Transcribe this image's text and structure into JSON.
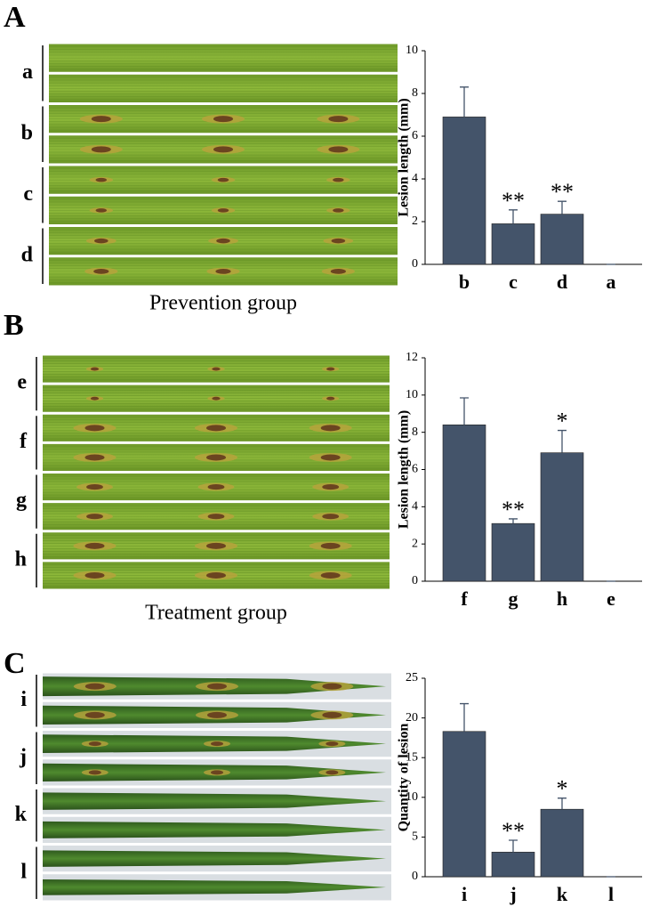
{
  "chart_data": [
    {
      "type": "bar",
      "panel": "A",
      "caption": "Prevention group",
      "photo_labels": [
        "a",
        "b",
        "c",
        "d"
      ],
      "y_label": "Lesion length (mm)",
      "categories": [
        "b",
        "c",
        "d",
        "a"
      ],
      "values": [
        6.9,
        1.9,
        2.35,
        0
      ],
      "errors": [
        1.4,
        0.65,
        0.6,
        0
      ],
      "annotations": [
        null,
        "**",
        "**",
        null
      ],
      "color": "#44546a",
      "ylim": [
        0,
        10
      ],
      "yticks": [
        0,
        2,
        4,
        6,
        8,
        10
      ]
    },
    {
      "type": "bar",
      "panel": "B",
      "caption": "Treatment group",
      "photo_labels": [
        "e",
        "f",
        "g",
        "h"
      ],
      "y_label": "Lesion length (mm)",
      "categories": [
        "f",
        "g",
        "h",
        "e"
      ],
      "values": [
        8.4,
        3.1,
        6.9,
        0
      ],
      "errors": [
        1.45,
        0.25,
        1.2,
        0
      ],
      "annotations": [
        null,
        "**",
        "*",
        null
      ],
      "color": "#44546a",
      "ylim": [
        0,
        12
      ],
      "yticks": [
        0,
        2,
        4,
        6,
        8,
        10,
        12
      ]
    },
    {
      "type": "bar",
      "panel": "C",
      "photo_labels": [
        "i",
        "j",
        "k",
        "l"
      ],
      "y_label": "Quantity of lesion",
      "categories": [
        "i",
        "j",
        "k",
        "l"
      ],
      "values": [
        18.3,
        3.1,
        8.5,
        0
      ],
      "errors": [
        3.5,
        1.5,
        1.4,
        0
      ],
      "annotations": [
        null,
        "**",
        "*",
        null
      ],
      "color": "#44546a",
      "ylim": [
        0,
        25
      ],
      "yticks": [
        0,
        5,
        10,
        15,
        20,
        25
      ]
    }
  ]
}
